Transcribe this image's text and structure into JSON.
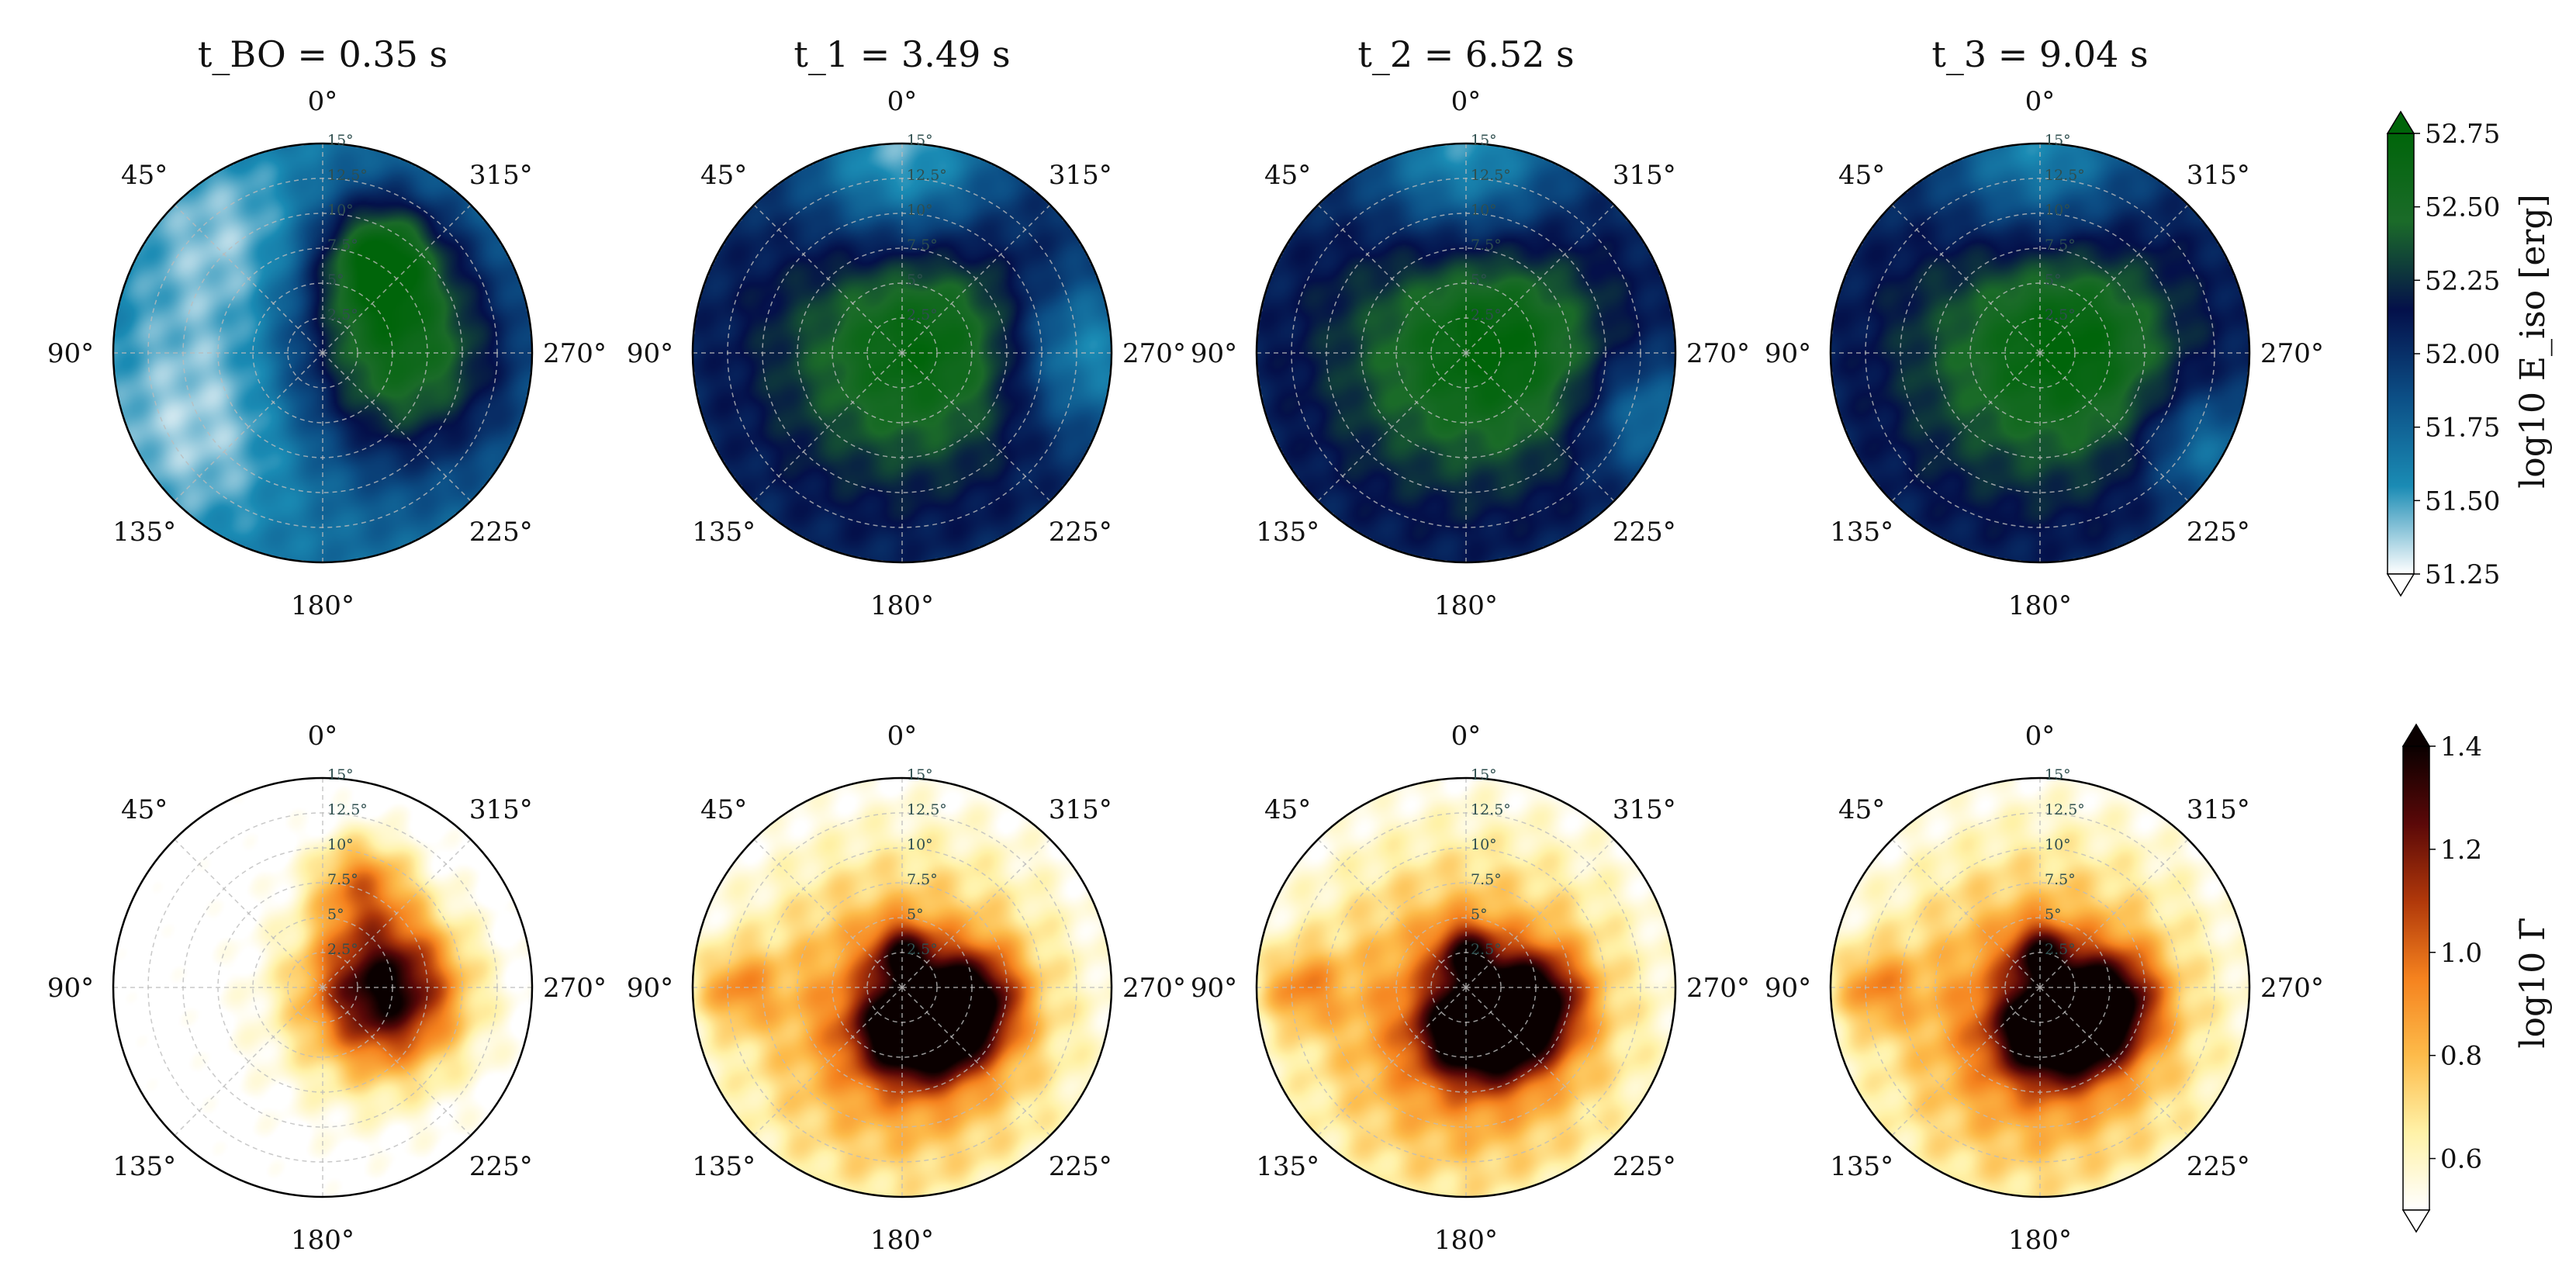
{
  "figure": {
    "panel_titles": [
      "t_BO = 0.35 s",
      "t_1 = 3.49 s",
      "t_2 = 6.52 s",
      "t_3 = 9.04 s"
    ],
    "angle_labels": [
      "0°",
      "45°",
      "90°",
      "135°",
      "180°",
      "225°",
      "270°",
      "315°"
    ],
    "radial_ticks": [
      "2.5°",
      "5°",
      "7.5°",
      "10°",
      "12.5°",
      "15°"
    ],
    "colorbar_top": {
      "label": "log10 E_iso [erg]",
      "ticks": [
        "51.25",
        "51.50",
        "51.75",
        "52.00",
        "52.25",
        "52.50",
        "52.75"
      ]
    },
    "colorbar_bottom": {
      "label": "log10 Γ̄",
      "ticks": [
        "0.6",
        "0.8",
        "1.0",
        "1.2",
        "1.4"
      ]
    }
  },
  "chart_data": [
    {
      "type": "heatmap",
      "projection": "polar",
      "quantity": "log10 E_iso [erg]",
      "theta_axis": "azimuth, 0° at top, increasing counter-clockwise",
      "r_range_deg": [
        0,
        15
      ],
      "color_range": [
        51.25,
        52.75
      ],
      "colormap": [
        "#ffffff",
        "#1a8bb4",
        "#0c4f86",
        "#04104a",
        "#1b6b29",
        "#00650a"
      ],
      "grid": true,
      "panels": [
        {
          "time": "t_BO = 0.35 s",
          "t_s": 0.35,
          "background": 51.7,
          "blobs": [
            {
              "phi": 270,
              "r": 5.5,
              "sigma": 5.5,
              "amp": 0.9
            },
            {
              "phi": 330,
              "r": 8,
              "sigma": 3,
              "amp": 0.8
            },
            {
              "phi": 120,
              "r": 10,
              "sigma": 6,
              "amp": -0.35
            },
            {
              "phi": 40,
              "r": 11,
              "sigma": 5,
              "amp": -0.3
            }
          ]
        },
        {
          "time": "t_1 = 3.49 s",
          "t_s": 3.49,
          "background": 52.0,
          "blobs": [
            {
              "phi": 0,
              "r": 0,
              "sigma": 7,
              "amp": 0.55
            },
            {
              "phi": 290,
              "r": 3,
              "sigma": 4,
              "amp": 0.2
            },
            {
              "phi": 0,
              "r": 14,
              "sigma": 5,
              "amp": -0.6
            },
            {
              "phi": 270,
              "r": 13,
              "sigma": 4,
              "amp": -0.5
            }
          ]
        },
        {
          "time": "t_2 = 6.52 s",
          "t_s": 6.52,
          "background": 52.0,
          "blobs": [
            {
              "phi": 0,
              "r": 0,
              "sigma": 7.5,
              "amp": 0.55
            },
            {
              "phi": 285,
              "r": 3,
              "sigma": 4,
              "amp": 0.25
            },
            {
              "phi": 0,
              "r": 14,
              "sigma": 5,
              "amp": -0.55
            },
            {
              "phi": 250,
              "r": 13.5,
              "sigma": 3,
              "amp": -0.4
            }
          ]
        },
        {
          "time": "t_3 = 9.04 s",
          "t_s": 9.04,
          "background": 52.0,
          "blobs": [
            {
              "phi": 0,
              "r": 0,
              "sigma": 7.5,
              "amp": 0.55
            },
            {
              "phi": 285,
              "r": 3,
              "sigma": 4,
              "amp": 0.25
            },
            {
              "phi": 0,
              "r": 14,
              "sigma": 5,
              "amp": -0.5
            },
            {
              "phi": 240,
              "r": 13.5,
              "sigma": 3,
              "amp": -0.4
            }
          ]
        }
      ]
    },
    {
      "type": "heatmap",
      "projection": "polar",
      "quantity": "log10 Γ̄",
      "theta_axis": "azimuth, 0° at top, increasing counter-clockwise",
      "r_range_deg": [
        0,
        15
      ],
      "color_range": [
        0.5,
        1.4
      ],
      "colormap": [
        "#ffffff",
        "#fff2a8",
        "#fdbb4a",
        "#f5821e",
        "#b0380a",
        "#5a0808",
        "#0a0000"
      ],
      "grid": true,
      "panels": [
        {
          "time": "t_BO = 0.35 s",
          "t_s": 0.35,
          "background": 0.45,
          "blobs": [
            {
              "phi": 270,
              "r": 4.5,
              "sigma": 3.5,
              "amp": 0.7
            },
            {
              "phi": 250,
              "r": 4,
              "sigma": 5.5,
              "amp": 0.3
            },
            {
              "phi": 340,
              "r": 8,
              "sigma": 2.5,
              "amp": 0.4
            }
          ]
        },
        {
          "time": "t_1 = 3.49 s",
          "t_s": 3.49,
          "background": 0.45,
          "blobs": [
            {
              "phi": 0,
              "r": 0,
              "sigma": 8,
              "amp": 0.3
            },
            {
              "phi": 180,
              "r": 6,
              "sigma": 9,
              "amp": 0.25
            },
            {
              "phi": 220,
              "r": 4,
              "sigma": 2.5,
              "amp": 0.55
            },
            {
              "phi": 260,
              "r": 5,
              "sigma": 2.5,
              "amp": 0.6
            },
            {
              "phi": 175,
              "r": 3,
              "sigma": 2.5,
              "amp": 0.5
            },
            {
              "phi": 0,
              "r": 2.5,
              "sigma": 1.5,
              "amp": 0.45
            },
            {
              "phi": 90,
              "r": 12,
              "sigma": 2,
              "amp": 0.3
            }
          ]
        },
        {
          "time": "t_2 = 6.52 s",
          "t_s": 6.52,
          "background": 0.45,
          "blobs": [
            {
              "phi": 0,
              "r": 0,
              "sigma": 8.5,
              "amp": 0.3
            },
            {
              "phi": 180,
              "r": 6,
              "sigma": 9,
              "amp": 0.25
            },
            {
              "phi": 220,
              "r": 4,
              "sigma": 2.5,
              "amp": 0.55
            },
            {
              "phi": 260,
              "r": 5,
              "sigma": 2.5,
              "amp": 0.6
            },
            {
              "phi": 175,
              "r": 3,
              "sigma": 2.5,
              "amp": 0.5
            },
            {
              "phi": 0,
              "r": 2.5,
              "sigma": 1.5,
              "amp": 0.45
            },
            {
              "phi": 90,
              "r": 12,
              "sigma": 2,
              "amp": 0.3
            }
          ]
        },
        {
          "time": "t_3 = 9.04 s",
          "t_s": 9.04,
          "background": 0.45,
          "blobs": [
            {
              "phi": 0,
              "r": 0,
              "sigma": 8.5,
              "amp": 0.3
            },
            {
              "phi": 180,
              "r": 6,
              "sigma": 9,
              "amp": 0.25
            },
            {
              "phi": 220,
              "r": 4,
              "sigma": 2.5,
              "amp": 0.55
            },
            {
              "phi": 260,
              "r": 5,
              "sigma": 2.5,
              "amp": 0.6
            },
            {
              "phi": 175,
              "r": 3,
              "sigma": 2.5,
              "amp": 0.5
            },
            {
              "phi": 0,
              "r": 2.5,
              "sigma": 1.5,
              "amp": 0.45
            },
            {
              "phi": 90,
              "r": 12,
              "sigma": 2,
              "amp": 0.3
            }
          ]
        }
      ]
    }
  ]
}
